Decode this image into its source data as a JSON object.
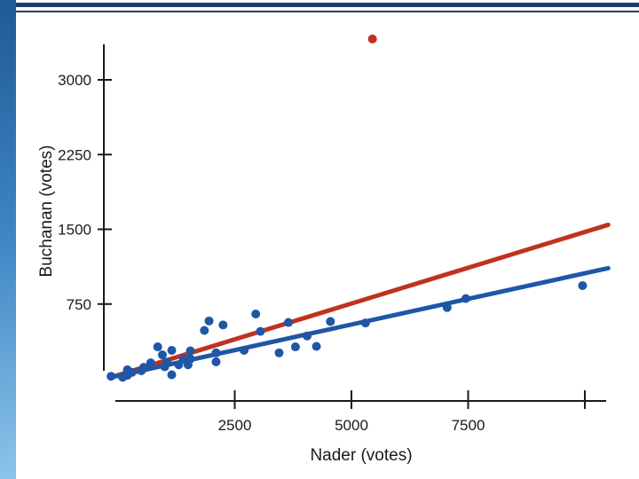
{
  "chart_data": {
    "type": "scatter",
    "xlabel": "Nader (votes)",
    "ylabel": "Buchanan (votes)",
    "xlim": [
      0,
      10500
    ],
    "ylim": [
      0,
      3500
    ],
    "x_ticks": [
      {
        "value": 2500,
        "label": "2500"
      },
      {
        "value": 5000,
        "label": "5000"
      },
      {
        "value": 7500,
        "label": "7500"
      },
      {
        "value": 10000,
        "label": ""
      }
    ],
    "y_ticks": [
      {
        "value": 750,
        "label": "750"
      },
      {
        "value": 1500,
        "label": "1500"
      },
      {
        "value": 2250,
        "label": "2250"
      },
      {
        "value": 3000,
        "label": "3000"
      }
    ],
    "grid": false,
    "series": [
      {
        "color": "#1f56a6",
        "points": [
          [
            -150,
            25
          ],
          [
            100,
            15
          ],
          [
            200,
            35
          ],
          [
            300,
            65
          ],
          [
            200,
            90
          ],
          [
            500,
            80
          ],
          [
            550,
            115
          ],
          [
            700,
            160
          ],
          [
            850,
            320
          ],
          [
            950,
            240
          ],
          [
            1000,
            120
          ],
          [
            1050,
            165
          ],
          [
            1150,
            285
          ],
          [
            1150,
            40
          ],
          [
            1300,
            140
          ],
          [
            1400,
            200
          ],
          [
            1500,
            140
          ],
          [
            1550,
            200
          ],
          [
            1550,
            280
          ],
          [
            1850,
            485
          ],
          [
            1950,
            580
          ],
          [
            2100,
            170
          ],
          [
            2100,
            260
          ],
          [
            2250,
            540
          ],
          [
            2700,
            285
          ],
          [
            2950,
            650
          ],
          [
            3050,
            475
          ],
          [
            3450,
            260
          ],
          [
            3650,
            565
          ],
          [
            3800,
            320
          ],
          [
            4050,
            430
          ],
          [
            4250,
            325
          ],
          [
            4550,
            575
          ],
          [
            5300,
            560
          ],
          [
            7050,
            715
          ],
          [
            7450,
            805
          ],
          [
            9950,
            935
          ]
        ]
      },
      {
        "color": "#c0321f",
        "points": [
          [
            5450,
            3410
          ]
        ]
      }
    ],
    "lines": [
      {
        "color": "#c0321f",
        "from": [
          -150,
          15
        ],
        "to": [
          10500,
          1545
        ]
      },
      {
        "color": "#1f56a6",
        "from": [
          -150,
          15
        ],
        "to": [
          10500,
          1110
        ]
      }
    ]
  }
}
